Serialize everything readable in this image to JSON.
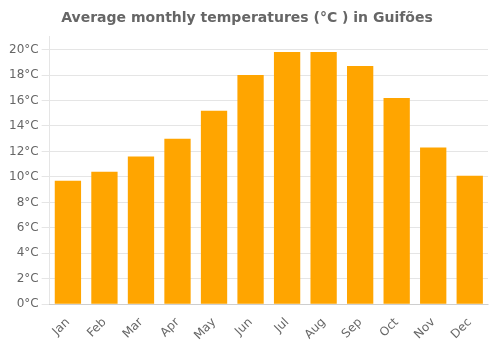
{
  "chart_data": {
    "type": "bar",
    "title": "Average monthly temperatures (°C ) in Guifões",
    "categories": [
      "Jan",
      "Feb",
      "Mar",
      "Apr",
      "May",
      "Jun",
      "Jul",
      "Aug",
      "Sep",
      "Oct",
      "Nov",
      "Dec"
    ],
    "values": [
      9.7,
      10.4,
      11.6,
      13.0,
      15.2,
      18.0,
      19.8,
      19.8,
      18.7,
      16.2,
      12.3,
      10.1
    ],
    "color": "#FFA500",
    "ylim": [
      0,
      21
    ],
    "yticks": [
      {
        "value": 0,
        "label": "0°C"
      },
      {
        "value": 2,
        "label": "2°C"
      },
      {
        "value": 4,
        "label": "4°C"
      },
      {
        "value": 6,
        "label": "6°C"
      },
      {
        "value": 8,
        "label": "8°C"
      },
      {
        "value": 10,
        "label": "10°C"
      },
      {
        "value": 12,
        "label": "12°C"
      },
      {
        "value": 14,
        "label": "14°C"
      },
      {
        "value": 16,
        "label": "16°C"
      },
      {
        "value": 18,
        "label": "18°C"
      },
      {
        "value": 20,
        "label": "20°C"
      }
    ],
    "grid": true
  }
}
